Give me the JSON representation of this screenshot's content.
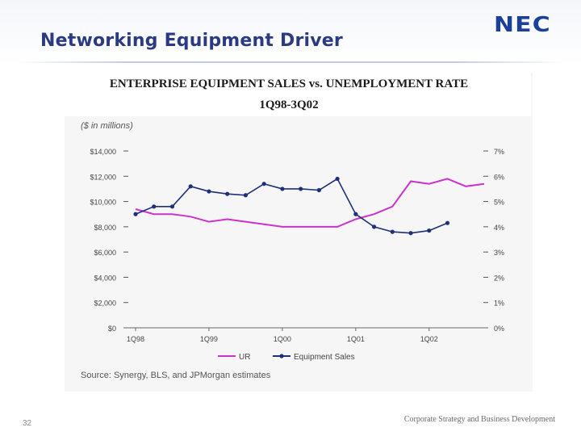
{
  "slide": {
    "title": "Networking Equipment Driver",
    "logo": "NEC",
    "page_number": "32",
    "footer": "Corporate Strategy and Business Development"
  },
  "chart_data": {
    "type": "line",
    "title": "ENTERPRISE EQUIPMENT SALES vs. UNEMPLOYMENT RATE",
    "subtitle": "1Q98-3Q02",
    "unit_label": "($ in millions)",
    "source": "Source: Synergy, BLS, and JPMorgan estimates",
    "x_ticks": [
      {
        "label": "1Q98",
        "index": 0
      },
      {
        "label": "1Q99",
        "index": 4
      },
      {
        "label": "1Q00",
        "index": 8
      },
      {
        "label": "1Q01",
        "index": 12
      },
      {
        "label": "1Q02",
        "index": 16
      }
    ],
    "y_left": {
      "min": 0,
      "max": 14000,
      "ticks": [
        {
          "value": 14000,
          "label": "$14,000"
        },
        {
          "value": 12000,
          "label": "$12,000"
        },
        {
          "value": 10000,
          "label": "$10,000"
        },
        {
          "value": 8000,
          "label": "$8,000"
        },
        {
          "value": 6000,
          "label": "$6,000"
        },
        {
          "value": 4000,
          "label": "$4,000"
        },
        {
          "value": 2000,
          "label": "$2,000"
        },
        {
          "value": 0,
          "label": "$0"
        }
      ]
    },
    "y_right": {
      "min": 0,
      "max": 7,
      "ticks": [
        {
          "value": 7,
          "label": "7%"
        },
        {
          "value": 6,
          "label": "6%"
        },
        {
          "value": 5,
          "label": "5%"
        },
        {
          "value": 4,
          "label": "4%"
        },
        {
          "value": 3,
          "label": "3%"
        },
        {
          "value": 2,
          "label": "2%"
        },
        {
          "value": 1,
          "label": "1%"
        },
        {
          "value": 0,
          "label": "0%"
        }
      ]
    },
    "series": [
      {
        "name": "UR",
        "axis": "right",
        "color": "#cc33cc",
        "markers": false,
        "values": [
          4.7,
          4.5,
          4.5,
          4.4,
          4.2,
          4.3,
          4.2,
          4.1,
          4.0,
          4.0,
          4.0,
          4.0,
          4.3,
          4.5,
          4.8,
          5.8,
          5.7,
          5.9,
          5.6,
          5.7
        ]
      },
      {
        "name": "Equipment Sales",
        "axis": "left",
        "color": "#1f2f7a",
        "markers": true,
        "values": [
          9000,
          9600,
          9600,
          11200,
          10800,
          10600,
          10500,
          11400,
          11000,
          11000,
          10900,
          11800,
          9000,
          8000,
          7600,
          7500,
          7700,
          8300
        ]
      }
    ]
  }
}
